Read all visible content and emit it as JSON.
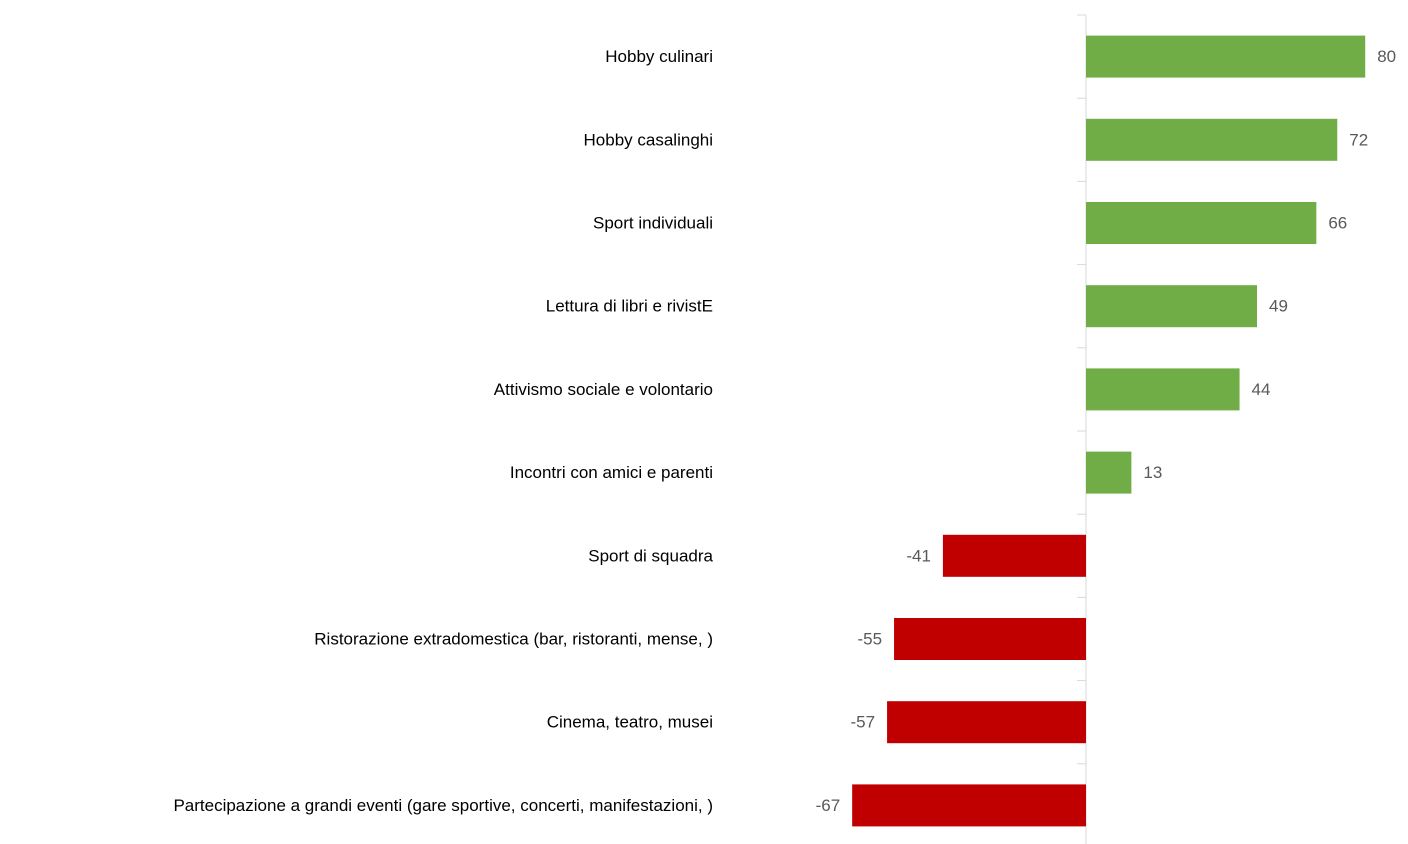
{
  "chart_data": {
    "type": "bar",
    "orientation": "horizontal",
    "categories": [
      "Hobby culinari",
      "Hobby casalinghi",
      "Sport individuali",
      "Lettura di libri e rivistE",
      "Attivismo sociale e volontario",
      "Incontri con amici e parenti",
      "Sport di squadra",
      "Ristorazione extradomestica (bar, ristoranti, mense, )",
      "Cinema, teatro, musei",
      "Partecipazione a grandi eventi (gare sportive, concerti, manifestazioni, )"
    ],
    "values": [
      80,
      72,
      66,
      49,
      44,
      13,
      -41,
      -55,
      -57,
      -67
    ],
    "positive_color": "#70ad47",
    "negative_color": "#c00000"
  }
}
